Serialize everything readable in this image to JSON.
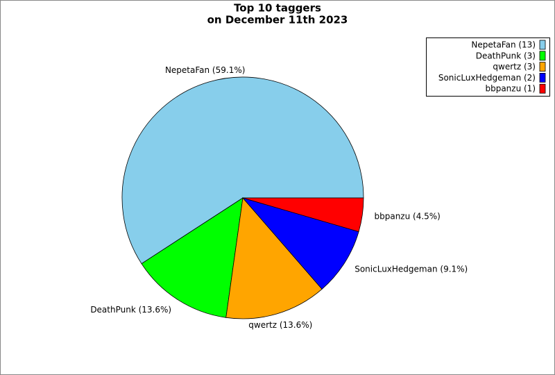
{
  "chart_data": {
    "type": "pie",
    "title": [
      "Top 10 taggers",
      "on December 11th 2023"
    ],
    "values": [
      59.1,
      13.6,
      13.6,
      9.1,
      4.5
    ],
    "value_labels": [
      "NepetaFan (59.1%)",
      "DeathPunk (13.6%)",
      "qwertz (13.6%)",
      "SonicLuxHedgeman (9.1%)",
      "bbpanzu (4.5%)"
    ],
    "legend_labels": [
      "NepetaFan (13)",
      "DeathPunk (3)",
      "qwertz (3)",
      "SonicLuxHedgeman (2)",
      "bbpanzu (1)"
    ],
    "colors": [
      "#87ceeb",
      "#00ff00",
      "#ffa500",
      "#0000ff",
      "#ff0000"
    ],
    "legend": "upper right"
  }
}
